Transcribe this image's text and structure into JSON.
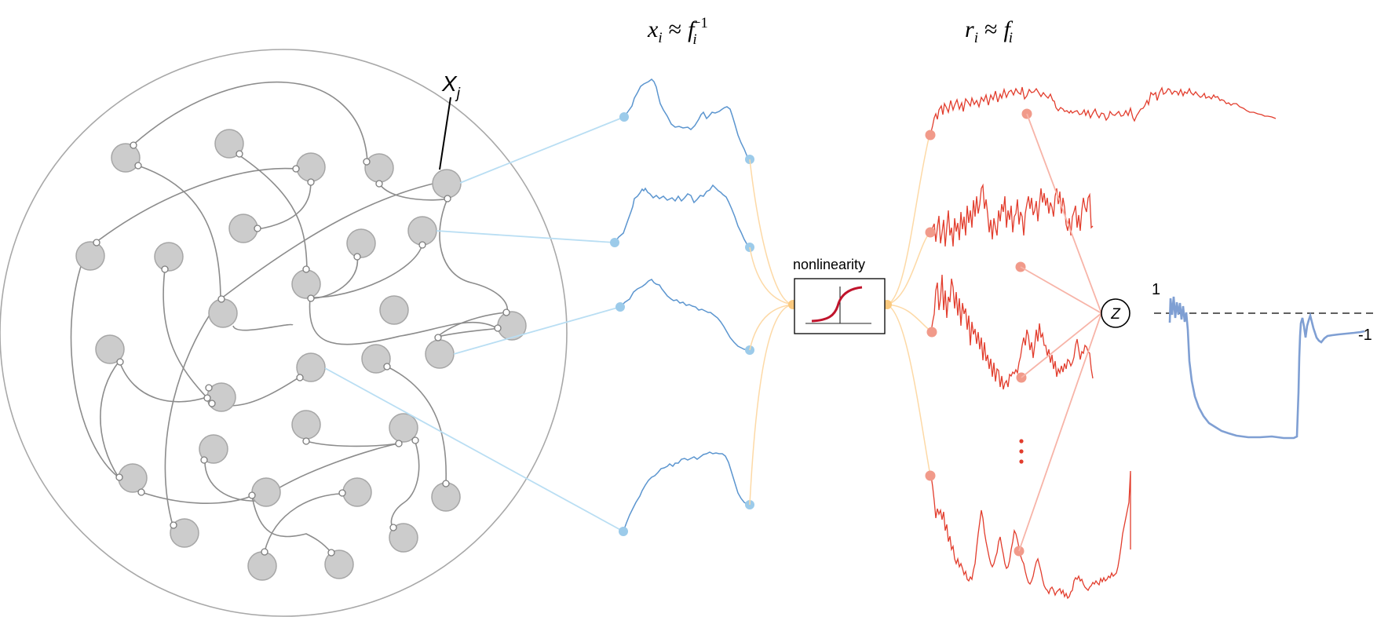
{
  "labels": {
    "node_label": "X",
    "node_label_sub": "j",
    "blue_header_var": "x",
    "blue_header_sub": "i",
    "blue_header_rel": "≈",
    "blue_header_fn": "f",
    "blue_header_fn_sub": "i",
    "blue_header_fn_sup": "−1",
    "red_header_var": "r",
    "red_header_sub": "i",
    "red_header_rel": "≈",
    "red_header_fn": "f",
    "red_header_fn_sub": "i",
    "nonlinearity": "nonlinearity",
    "z_node": "Z",
    "output_level_top": "1",
    "output_level_right": "-1"
  },
  "colors": {
    "network_node": "#cccccc",
    "network_edge": "#8c8c8c",
    "blue_trace": "#5b95cf",
    "blue_link": "#b9def3",
    "blue_dot": "#9ccbea",
    "orange_link": "#fdd9a6",
    "orange_dot": "#fbc97e",
    "red_trace": "#e23d2d",
    "red_link": "#f7b4a8",
    "red_dot": "#f19a8a",
    "sigmoid": "#c0142c",
    "output_trace": "#7f9fd3"
  },
  "icons": {
    "ellipsis": "vertical-ellipsis-icon"
  }
}
